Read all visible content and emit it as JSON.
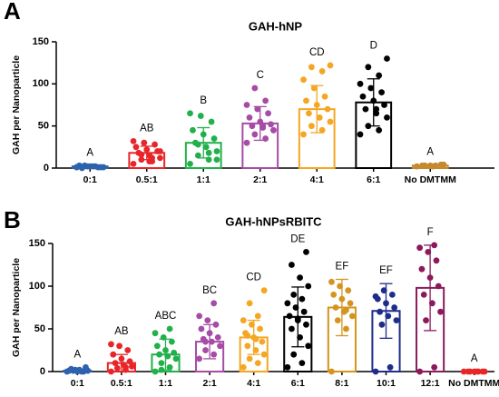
{
  "chart_data": [
    {
      "type": "bar",
      "panel": "A",
      "title": "GAH-hNP",
      "y_label": "GAH per Nanoparticle",
      "categories": [
        "0:1",
        "0.5:1",
        "1:1",
        "2:1",
        "4:1",
        "6:1",
        "No DMTMM"
      ],
      "colors": [
        "#2e62ad",
        "#e8262a",
        "#22b04b",
        "#a64ca6",
        "#f5a623",
        "#000000",
        "#c48a2c"
      ],
      "values": [
        2,
        18,
        30,
        53,
        70,
        78,
        3
      ],
      "errors": [
        1,
        8,
        18,
        20,
        28,
        28,
        1
      ],
      "annotations": [
        "A",
        "AB",
        "B",
        "C",
        "CD",
        "D",
        "A"
      ],
      "points": [
        [
          1,
          2,
          3,
          1,
          2,
          0,
          1,
          2,
          3,
          1,
          2,
          1
        ],
        [
          5,
          8,
          10,
          12,
          15,
          18,
          20,
          22,
          25,
          28,
          30,
          32,
          12,
          16,
          20,
          8
        ],
        [
          5,
          10,
          15,
          20,
          25,
          30,
          35,
          40,
          45,
          55,
          62,
          65,
          18,
          28,
          10
        ],
        [
          30,
          35,
          40,
          45,
          48,
          50,
          52,
          55,
          60,
          65,
          70,
          75,
          80,
          95,
          45,
          50
        ],
        [
          40,
          45,
          50,
          55,
          60,
          65,
          70,
          75,
          80,
          85,
          95,
          105,
          115,
          120,
          122,
          60
        ],
        [
          40,
          45,
          50,
          60,
          65,
          70,
          75,
          80,
          85,
          90,
          95,
          100,
          110,
          120,
          130,
          70
        ],
        [
          2,
          3,
          3,
          4,
          2,
          3,
          4,
          3
        ]
      ],
      "ylim": [
        0,
        150
      ],
      "yticks": [
        0,
        50,
        100,
        150
      ]
    },
    {
      "type": "bar",
      "panel": "B",
      "title": "GAH-hNPsRBITC",
      "y_label": "GAH per Nanoparticle",
      "categories": [
        "0:1",
        "0.5:1",
        "1:1",
        "2:1",
        "4:1",
        "6:1",
        "8:1",
        "10:1",
        "12:1",
        "No DMTMM"
      ],
      "colors": [
        "#2e62ad",
        "#e8262a",
        "#22b04b",
        "#a64ca6",
        "#f5a623",
        "#000000",
        "#d4941f",
        "#1f2d8a",
        "#8b1a5c",
        "#e8262a"
      ],
      "values": [
        1,
        10,
        20,
        35,
        40,
        64,
        75,
        71,
        98,
        0
      ],
      "errors": [
        2,
        10,
        18,
        20,
        20,
        35,
        33,
        32,
        50,
        0
      ],
      "annotations": [
        "A",
        "AB",
        "ABC",
        "BC",
        "CD",
        "DE",
        "EF",
        "EF",
        "F",
        "A"
      ],
      "points": [
        [
          0,
          0,
          1,
          1,
          2,
          3,
          5,
          0,
          1,
          0,
          2
        ],
        [
          0,
          2,
          4,
          6,
          8,
          10,
          12,
          15,
          20,
          25,
          30,
          32,
          5
        ],
        [
          0,
          5,
          10,
          15,
          18,
          20,
          22,
          25,
          30,
          35,
          40,
          45,
          50,
          2
        ],
        [
          15,
          20,
          25,
          30,
          35,
          38,
          40,
          45,
          50,
          55,
          60,
          65,
          80,
          35
        ],
        [
          5,
          10,
          15,
          20,
          25,
          30,
          35,
          40,
          45,
          50,
          55,
          60,
          65,
          80,
          95,
          38,
          42
        ],
        [
          5,
          10,
          20,
          30,
          40,
          50,
          55,
          60,
          65,
          70,
          75,
          80,
          85,
          90,
          100,
          110,
          125,
          140,
          62
        ],
        [
          0,
          50,
          60,
          65,
          70,
          75,
          80,
          85,
          90,
          95,
          100,
          105,
          72
        ],
        [
          0,
          5,
          55,
          60,
          65,
          70,
          75,
          80,
          85,
          90,
          95,
          88
        ],
        [
          0,
          5,
          60,
          70,
          80,
          90,
          100,
          110,
          120,
          130,
          140,
          145,
          148
        ],
        [
          0,
          0,
          0,
          0,
          0,
          0,
          0,
          0
        ]
      ],
      "ylim": [
        0,
        150
      ],
      "yticks": [
        0,
        50,
        100,
        150
      ]
    }
  ]
}
